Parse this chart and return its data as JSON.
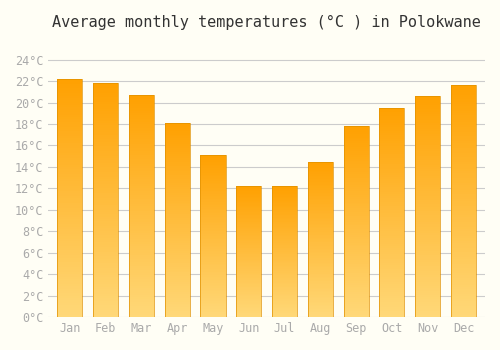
{
  "title": "Average monthly temperatures (°C ) in Polokwane",
  "months": [
    "Jan",
    "Feb",
    "Mar",
    "Apr",
    "May",
    "Jun",
    "Jul",
    "Aug",
    "Sep",
    "Oct",
    "Nov",
    "Dec"
  ],
  "values": [
    22.2,
    21.8,
    20.7,
    18.1,
    15.1,
    12.2,
    12.2,
    14.5,
    17.8,
    19.5,
    20.6,
    21.6
  ],
  "bar_color_bottom": "#FFD878",
  "bar_color_top": "#FFA000",
  "bar_edge_color": "#E09000",
  "ylim": [
    0,
    26
  ],
  "yticks": [
    0,
    2,
    4,
    6,
    8,
    10,
    12,
    14,
    16,
    18,
    20,
    22,
    24
  ],
  "ytick_labels": [
    "0°C",
    "2°C",
    "4°C",
    "6°C",
    "8°C",
    "10°C",
    "12°C",
    "14°C",
    "16°C",
    "18°C",
    "20°C",
    "22°C",
    "24°C"
  ],
  "background_color": "#FFFEF5",
  "grid_color": "#CCCCCC",
  "title_fontsize": 11,
  "tick_fontsize": 8.5,
  "tick_color": "#AAAAAA",
  "font_family": "monospace"
}
